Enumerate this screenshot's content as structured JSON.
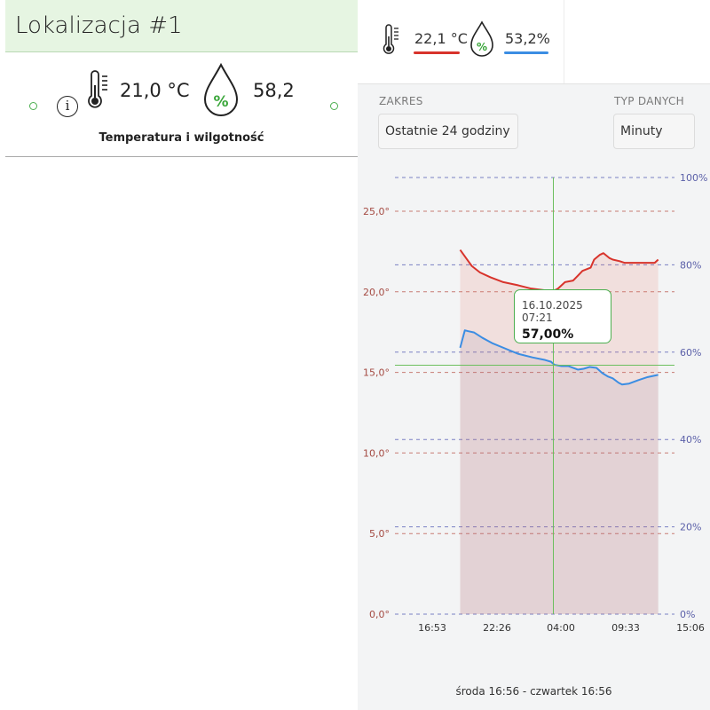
{
  "location_card": {
    "title": "Lokalizacja #1",
    "temperature": "21,0 °C",
    "humidity": "58,2",
    "subtitle": "Temperatura i wilgotność"
  },
  "header": {
    "temperature": "22,1 °C",
    "humidity": "53,2%",
    "humidity_symbol": "%",
    "temperature_color": "#d8332b",
    "humidity_color": "#3b8de3"
  },
  "controls": {
    "range_label": "ZAKRES",
    "range_value": "Ostatnie 24 godziny",
    "type_label": "TYP DANYCH",
    "type_value": "Minuty"
  },
  "chart_data": {
    "type": "line",
    "x_ticks": [
      "16:53",
      "22:26",
      "04:00",
      "09:33",
      "15:06"
    ],
    "y_left_ticks": [
      "0,0°",
      "5,0°",
      "10,0°",
      "15,0°",
      "20,0°",
      "25,0°"
    ],
    "y_right_ticks": [
      "0%",
      "20%",
      "40%",
      "60%",
      "80%",
      "100%"
    ],
    "y_left_range": [
      0,
      25
    ],
    "y_right_range": [
      0,
      100
    ],
    "x_range_hours": [
      0,
      24
    ],
    "series": [
      {
        "axis": "left",
        "color": "#d8332b",
        "points": [
          [
            5.6,
            22.6
          ],
          [
            5.8,
            22.4
          ],
          [
            6.1,
            22.1
          ],
          [
            6.6,
            21.6
          ],
          [
            7.3,
            21.2
          ],
          [
            8.2,
            20.9
          ],
          [
            9.3,
            20.6
          ],
          [
            10.6,
            20.4
          ],
          [
            11.7,
            20.2
          ],
          [
            12.8,
            20.1
          ],
          [
            13.5,
            20.0
          ],
          [
            14.0,
            20.2
          ],
          [
            14.6,
            20.6
          ],
          [
            15.3,
            20.7
          ],
          [
            15.7,
            21.0
          ],
          [
            16.1,
            21.3
          ],
          [
            16.8,
            21.5
          ],
          [
            17.1,
            22.0
          ],
          [
            17.6,
            22.3
          ],
          [
            17.9,
            22.4
          ],
          [
            18.4,
            22.1
          ],
          [
            18.7,
            22.0
          ],
          [
            19.3,
            21.9
          ],
          [
            19.7,
            21.8
          ],
          [
            20.3,
            21.8
          ],
          [
            21.0,
            21.8
          ],
          [
            21.8,
            21.8
          ],
          [
            22.3,
            21.8
          ],
          [
            22.6,
            22.0
          ]
        ]
      },
      {
        "axis": "right",
        "color": "#3b8de3",
        "points": [
          [
            5.6,
            61.0
          ],
          [
            5.8,
            63.0
          ],
          [
            6.0,
            65.0
          ],
          [
            6.3,
            64.8
          ],
          [
            6.8,
            64.5
          ],
          [
            7.5,
            63.3
          ],
          [
            8.4,
            62.0
          ],
          [
            9.5,
            60.8
          ],
          [
            10.6,
            59.6
          ],
          [
            11.8,
            58.8
          ],
          [
            12.9,
            58.2
          ],
          [
            13.4,
            57.8
          ],
          [
            13.7,
            57.1
          ],
          [
            14.3,
            56.8
          ],
          [
            14.9,
            56.8
          ],
          [
            15.7,
            56.0
          ],
          [
            16.2,
            56.2
          ],
          [
            16.7,
            56.6
          ],
          [
            17.3,
            56.4
          ],
          [
            17.8,
            55.2
          ],
          [
            18.3,
            54.4
          ],
          [
            18.7,
            54.0
          ],
          [
            19.2,
            53.0
          ],
          [
            19.5,
            52.6
          ],
          [
            20.1,
            52.8
          ],
          [
            20.9,
            53.6
          ],
          [
            21.7,
            54.3
          ],
          [
            22.6,
            54.8
          ]
        ]
      }
    ],
    "crosshair": {
      "x": 13.6,
      "y_right": 57.0
    },
    "tooltip": {
      "date": "16.10.2025 07:21",
      "value": "57,00%"
    }
  },
  "footer": {
    "date_range": "środa 16:56 - czwartek 16:56"
  }
}
